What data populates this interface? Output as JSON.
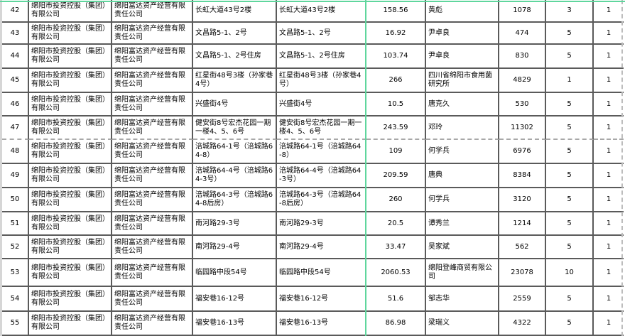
{
  "table": {
    "rows": [
      {
        "no": "42",
        "owner": "绵阳市投资控股（集团）有限公司",
        "operator": "绵阳富达资产经营有限责任公司",
        "address": "长虹大道43号2楼",
        "address_alt": "长虹大道43号2楼",
        "area": "158.56",
        "tenant": "黄彪",
        "ref": "1078",
        "count": "3",
        "flag": "1"
      },
      {
        "no": "43",
        "owner": "绵阳市投资控股（集团）有限公司",
        "operator": "绵阳富达资产经营有限责任公司",
        "address": "文昌路5-1、2号",
        "address_alt": "文昌路5-1、2号",
        "area": "16.92",
        "tenant": "尹卓良",
        "ref": "474",
        "count": "5",
        "flag": "1"
      },
      {
        "no": "44",
        "owner": "绵阳市投资控股（集团）有限公司",
        "operator": "绵阳富达资产经营有限责任公司",
        "address": "文昌路5-1、2号住房",
        "address_alt": "文昌路5-1、2号住房",
        "area": "103.74",
        "tenant": "尹卓良",
        "ref": "830",
        "count": "5",
        "flag": "1"
      },
      {
        "no": "45",
        "owner": "绵阳市投资控股（集团）有限公司",
        "operator": "绵阳富达资产经营有限责任公司",
        "address": "红星街48号3楼（孙家巷4号）",
        "address_alt": "红星街48号3楼（孙家巷4号）",
        "area": "266",
        "tenant": "四川省绵阳市食用菌研究所",
        "ref": "4829",
        "count": "1",
        "flag": "1"
      },
      {
        "no": "46",
        "owner": "绵阳市投资控股（集团）有限公司",
        "operator": "绵阳富达资产经营有限责任公司",
        "address": "兴盛街4号",
        "address_alt": "兴盛街4号",
        "area": "10.5",
        "tenant": "唐克久",
        "ref": "530",
        "count": "5",
        "flag": "1"
      },
      {
        "no": "47",
        "owner": "绵阳市投资控股（集团）有限公司",
        "operator": "绵阳富达资产经营有限责任公司",
        "address": "健安街8号宏杰花园一期一楼4、5、6号",
        "address_alt": "健安街8号宏杰花园一期一楼4、5、6号",
        "area": "243.59",
        "tenant": "邓玲",
        "ref": "11302",
        "count": "5",
        "flag": "1"
      },
      {
        "no": "48",
        "owner": "绵阳市投资控股（集团）有限公司",
        "operator": "绵阳富达资产经营有限责任公司",
        "address": "涪城路64-1号（涪城路64-8）",
        "address_alt": "涪城路64-1号（涪城路64-8）",
        "area": "109",
        "tenant": "何学兵",
        "ref": "6976",
        "count": "5",
        "flag": "1"
      },
      {
        "no": "49",
        "owner": "绵阳市投资控股（集团）有限公司",
        "operator": "绵阳富达资产经营有限责任公司",
        "address": "涪城路64-4号（涪城路64-3号）",
        "address_alt": "涪城路64-4号（涪城路64-3号）",
        "area": "209.59",
        "tenant": "唐典",
        "ref": "8384",
        "count": "5",
        "flag": "1"
      },
      {
        "no": "50",
        "owner": "绵阳市投资控股（集团）有限公司",
        "operator": "绵阳富达资产经营有限责任公司",
        "address": "涪城路64-3号（涪城路64-8后房）",
        "address_alt": "涪城路64-3号（涪城路64-8后房）",
        "area": "260",
        "tenant": "何学兵",
        "ref": "3120",
        "count": "5",
        "flag": "1"
      },
      {
        "no": "51",
        "owner": "绵阳市投资控股（集团）有限公司",
        "operator": "绵阳富达资产经营有限责任公司",
        "address": "南河路29-3号",
        "address_alt": "南河路29-3号",
        "area": "20.5",
        "tenant": "谭秀兰",
        "ref": "1214",
        "count": "5",
        "flag": "1"
      },
      {
        "no": "52",
        "owner": "绵阳市投资控股（集团）有限公司",
        "operator": "绵阳富达资产经营有限责任公司",
        "address": "南河路29-4号",
        "address_alt": "南河路29-4号",
        "area": "33.47",
        "tenant": "吴家斌",
        "ref": "562",
        "count": "5",
        "flag": "1"
      },
      {
        "no": "53",
        "owner": "绵阳市投资控股（集团）有限公司",
        "operator": "绵阳富达资产经营有限责任公司",
        "address": "临园路中段54号",
        "address_alt": "临园路中段54号",
        "area": "2060.53",
        "tenant": "绵阳登峰商贸有限公司",
        "ref": "23078",
        "count": "10",
        "flag": "1"
      },
      {
        "no": "54",
        "owner": "绵阳市投资控股（集团）有限公司",
        "operator": "绵阳富达资产经营有限责任公司",
        "address": "福安巷16-12号",
        "address_alt": "福安巷16-12号",
        "area": "51.6",
        "tenant": "邹志华",
        "ref": "2559",
        "count": "5",
        "flag": "1"
      },
      {
        "no": "55",
        "owner": "绵阳市投资控股（集团）有限公司",
        "operator": "绵阳富达资产经营有限责任公司",
        "address": "福安巷16-13号",
        "address_alt": "福安巷16-13号",
        "area": "86.98",
        "tenant": "梁瑞义",
        "ref": "4322",
        "count": "5",
        "flag": "1"
      }
    ]
  },
  "colors": {
    "grid_line": "#5a5a5a",
    "page_break_green": "#5fd69d",
    "page_break_dashed": "#bdbdbd",
    "row_gutter_gray": "#d6d6d6"
  }
}
